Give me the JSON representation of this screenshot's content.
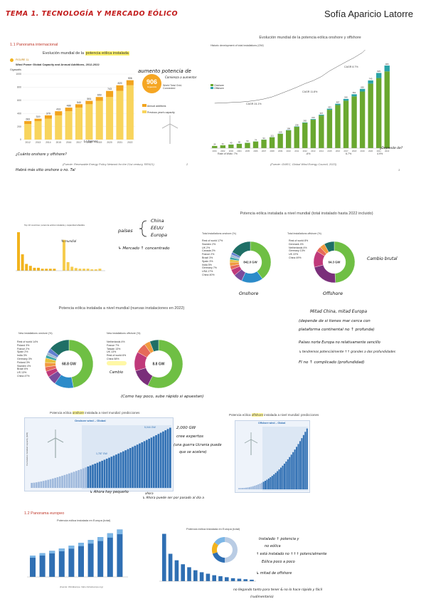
{
  "header": {
    "title": "TEMA 1. TECNOLOGÍA Y MERCADO EÓLICO",
    "author": "Sofía Aparicio Latorre"
  },
  "sec1": {
    "label": "1.1 Panorama internacional",
    "chart_title_pre": "Evolución mundial de la ",
    "chart_title_hl": "potencia eólica instalada",
    "figure_label": "FIGURE 11.",
    "figure_title": "Wind Power Global Capacity and Annual Additions, 2012-2022",
    "unit": "Gigawatts",
    "badge_value": "906",
    "badge_unit": "Gigawatts",
    "badge_note": "World Total Grid-Connected",
    "legend_annual": "Annual additions",
    "legend_prev": "Previous year's capacity",
    "source": "(Fuente: Renewable Energy Policy Network for the 21st century, REN21)",
    "page_num": "2",
    "note_top": "aumento potencia de",
    "note_top2": "Comienza a aumentar",
    "note_leftbar": "Lo hemos",
    "note_left1": "¿Cuánto onshore y offshore?",
    "note_left2": "Habrá más sitio onshore o no. Tal"
  },
  "chart_data": [
    {
      "type": "bar",
      "title": "Wind Power Global Capacity and Annual Additions, 2012-2022",
      "categories": [
        "2012",
        "2013",
        "2014",
        "2015",
        "2016",
        "2017",
        "2018",
        "2019",
        "2020",
        "2021",
        "2022"
      ],
      "series": [
        {
          "name": "Previous year's capacity",
          "values": [
            238,
            283,
            319,
            370,
            433,
            488,
            540,
            591,
            650,
            743,
            829
          ]
        },
        {
          "name": "Annual additions",
          "values": [
            45,
            36,
            51,
            63,
            55,
            52,
            51,
            59,
            93,
            86,
            77
          ]
        }
      ],
      "totals": [
        283,
        319,
        370,
        433,
        488,
        540,
        591,
        650,
        743,
        829,
        906
      ],
      "ylim": [
        0,
        1000
      ],
      "yticks": [
        0,
        200,
        400,
        600,
        800,
        1000
      ],
      "ylabel": "Gigawatts"
    },
    {
      "type": "bar",
      "title": "Evolución mundial de la potencia eólica onshore y offshore",
      "categories": [
        "2001",
        "2002",
        "2003",
        "2004",
        "2005",
        "2006",
        "2007",
        "2008",
        "2009",
        "2010",
        "2011",
        "2012",
        "2013",
        "2014",
        "2015",
        "2016",
        "2017",
        "2018",
        "2019",
        "2020",
        "2021",
        "2022"
      ],
      "series": [
        {
          "name": "Offshore",
          "values": [
            0,
            0,
            1,
            1,
            1,
            1,
            1,
            1,
            2,
            3,
            4,
            5,
            7,
            9,
            12,
            14,
            19,
            23,
            29,
            35,
            56,
            64
          ]
        },
        {
          "name": "Onshore",
          "values": [
            24,
            31,
            39,
            47,
            58,
            73,
            93,
            120,
            157,
            195,
            234,
            277,
            312,
            358,
            421,
            473,
            521,
            568,
            621,
            708,
            769,
            842
          ]
        }
      ],
      "totals": [
        24,
        31,
        40,
        48,
        59,
        74,
        94,
        121,
        159,
        198,
        238,
        282,
        319,
        367,
        433,
        487,
        540,
        591,
        650,
        743,
        825,
        906
      ],
      "ylim": [
        0,
        1000
      ]
    },
    {
      "type": "pie",
      "title": "Total installations onshore (%)",
      "center": "842.0 GW",
      "categories": [
        "China",
        "USA",
        "Germany",
        "India",
        "Spain",
        "Brazil",
        "France",
        "Canada",
        "UK",
        "Sweden",
        "Rest of world"
      ],
      "values": [
        40,
        17,
        7,
        5,
        3,
        3,
        2,
        2,
        2,
        2,
        17
      ]
    },
    {
      "type": "pie",
      "title": "Total installations offshore (%)",
      "center": "64.3 GW",
      "categories": [
        "China",
        "UK",
        "Germany",
        "Netherlands",
        "Denmark",
        "Rest of world"
      ],
      "values": [
        49,
        22,
        13,
        4,
        4,
        8
      ]
    },
    {
      "type": "pie",
      "title": "New installations onshore (%)",
      "center": "68.8 GW",
      "categories": [
        "China",
        "USA",
        "Brazil",
        "Sweden",
        "Finland",
        "Germany",
        "India",
        "Spain",
        "France",
        "Poland",
        "Rest of world"
      ],
      "values": [
        47,
        13,
        6,
        4,
        3,
        3,
        3,
        2,
        2,
        3,
        14
      ]
    },
    {
      "type": "pie",
      "title": "New installations offshore (%)",
      "center": "8.8 GW",
      "categories": [
        "China",
        "UK",
        "Taiwan",
        "France",
        "Netherlands",
        "Rest of world"
      ],
      "values": [
        58,
        13,
        13,
        7,
        4,
        6
      ]
    }
  ],
  "sec1b": {
    "chart_title": "Evolución mundial de la potencia eólica onshore y offshore",
    "subtitle": "Historic development of total installations (GW)",
    "legend_on": "Onshore",
    "legend_off": "Offshore",
    "cagr1": "CAGR 24.1%",
    "cagr2": "CAGR 11.8%",
    "cagr3": "CAGR 8.7%",
    "rw1": "Rate of Wdtc: 7%",
    "rw2": "-6%",
    "rw3": "6.7%",
    "rw4": "4.9%",
    "source": "(Fuente: GWEC, Global Wind Energy Council, 2023)",
    "note": "¿Depende de?",
    "page_num": "3"
  },
  "sec2": {
    "small_title": "Top 10 countries: potencia eólica instalada y capacidad añadida",
    "small_label": "% mundial",
    "note_paises": "países",
    "note_china": "China",
    "note_eeuu": "EEUU",
    "note_europa": "Europa",
    "note_mercado": "↳ Mercado ↑ concentrado",
    "panel_title": "Potencia eólica instalada a nivel mundial (total instalado hasta 2022 incluido)",
    "on_title": "Total installations onshore (%)",
    "off_title": "Total installations offshore (%)",
    "on_center": "842.0 GW",
    "off_center": "64.3 GW",
    "on_legend": [
      "Rest of world 17%",
      "Sweden 2%",
      "UK 2%",
      "Canada 2%",
      "France 2%",
      "Brazil 3%",
      "Spain 3%",
      "India 5%",
      "Germany 7%",
      "USA 17%",
      "China 40%"
    ],
    "off_legend": [
      "Rest of world 8%",
      "Denmark 4%",
      "Netherlands 4%",
      "Germany 13%",
      "UK 22%",
      "China 49%"
    ],
    "label_onshore": "Onshore",
    "label_offshore": "Offshore",
    "note_cambio": "Cambio brutal",
    "note_h1": "Mitad China, mitad Europa",
    "note_h2": "(depende de si tienes mar cerca con",
    "note_h3": "plataforma continental no ↑ profunda)",
    "note_h4": "Países norte Europa no relativamente sencillo",
    "note_h5": "↳ tendremos potencialmente ↑↑ grandes a dos profundidades",
    "note_h6": "FI no ↑ complicado (profundidad)"
  },
  "sec3": {
    "panel_title": "Potencia eólica instalada a nivel mundial (nuevas instalaciones en 2022)",
    "on_title": "New installations onshore (%)",
    "off_title": "New installations offshore (%)",
    "on_center": "68.8 GW",
    "off_center": "8.8 GW",
    "on_legend": [
      "Rest of world 14%",
      "Poland 3%",
      "France 2%",
      "Spain 2%",
      "India 3%",
      "Germany 3%",
      "Finland 3%",
      "Sweden 4%",
      "Brazil 6%",
      "US 13%",
      "China 47%"
    ],
    "off_legend": [
      "Netherlands 4%",
      "France 7%",
      "Taiwan 13%",
      "UK 13%",
      "Rest of world 6%",
      "China 58%"
    ],
    "note_taiwan": "Taiwan 13%",
    "note_cambio": "Cambio",
    "note_bottom": "(Como hay poco, sube rápido si apuestan)"
  },
  "sec4": {
    "title_pre": "Potencia eólica ",
    "title_hl": "onshore",
    "title_post": " instalada a nivel mundial: predicciones",
    "sub": "Onshore wind – Global",
    "axis": "Cumulative installed capacity (GW)",
    "v1": "~2,000 GW",
    "v2": "5,044 GW",
    "v3": "1,787 GW",
    "note1": "2,000 GW",
    "note2": "cree expertos",
    "note3": "(una guerra Ucrania puede",
    "note4": "que se acelere)",
    "note5": "↳ Ahora hay pequeño",
    "note6": "ahora",
    "note7": "↳ Ahora puede ser por pasado al día a",
    "right_title_pre": "Potencia eólica ",
    "right_title_hl": "offshore",
    "right_title_post": " instalada a nivel mundial: predicciones",
    "right_sub": "Offshore wind – Global"
  },
  "sec5": {
    "label": "1.2 Panorama europeo",
    "left_title": "Potencia eólica instalada en Europa (total)",
    "right_title": "Potencia eólica instalada en Europa (total)",
    "source": "(Fuente: WindEurope, https://windeurope.org)",
    "note1": "Instalado ↑ potencia y",
    "note2": "no eólica",
    "note3": "↑ está instalado no ↑↑↑ potencialmente",
    "note4": "Eólica poco a poco",
    "note5": "↳ mitad de offshore",
    "note6": "no llegando tanto para tener & no lo hace rápido y fácil",
    "note7": "(rudimentario)"
  },
  "colors": {
    "orange": "#f2b31d",
    "gold": "#f6cc4d",
    "green": "#6aa830",
    "dark_green": "#3f7d1b",
    "teal": "#2aa3a7",
    "blue": "#2f6fb3",
    "red": "#c21a1a"
  }
}
